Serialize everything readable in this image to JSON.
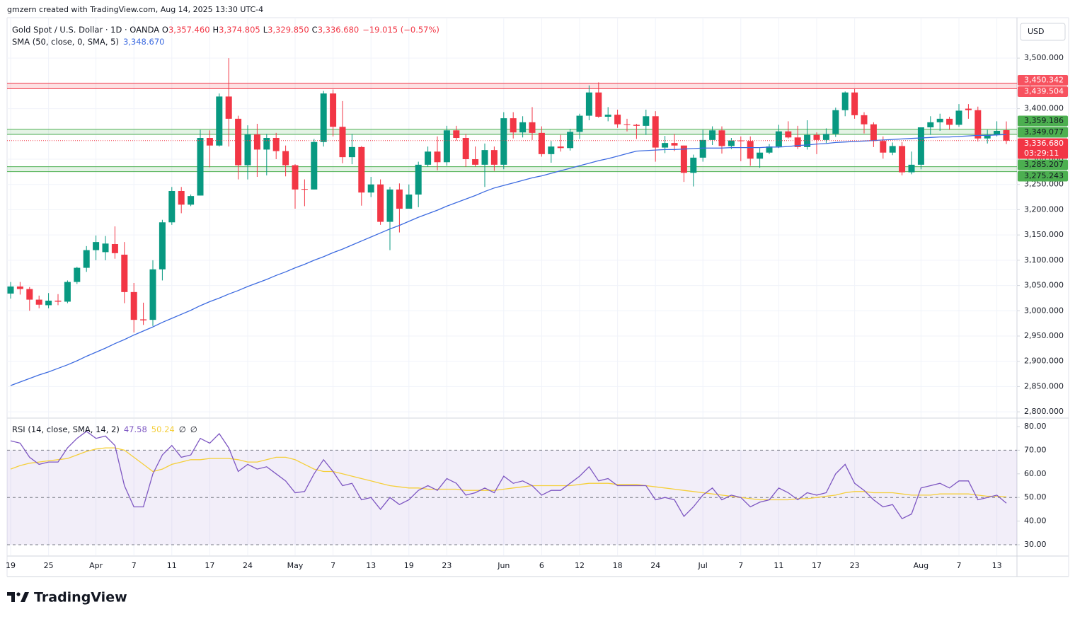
{
  "header": {
    "attribution": "gmzern created with TradingView.com, Aug 14, 2025 13:30 UTC-4"
  },
  "footer": {
    "logo": "TradingView"
  },
  "chart_data": [
    {
      "type": "candlestick",
      "title": "Gold Spot / U.S. Dollar · 1D · OANDA",
      "ohlc_legend": [
        {
          "key": "O",
          "value": "3,357.460"
        },
        {
          "key": "H",
          "value": "3,374.805"
        },
        {
          "key": "L",
          "value": "3,329.850"
        },
        {
          "key": "C",
          "value": "3,336.680"
        }
      ],
      "change": "−19.015 (−0.57%)",
      "currency": "USD",
      "categories": [
        "19",
        null,
        null,
        null,
        "25",
        null,
        null,
        null,
        null,
        "Apr",
        null,
        null,
        null,
        "7",
        null,
        null,
        null,
        "11",
        null,
        null,
        null,
        "17",
        null,
        null,
        null,
        "24",
        null,
        null,
        null,
        null,
        "May",
        null,
        null,
        null,
        "7",
        null,
        null,
        null,
        "13",
        null,
        null,
        null,
        "19",
        null,
        null,
        null,
        "23",
        null,
        null,
        null,
        null,
        null,
        "Jun",
        null,
        null,
        null,
        "6",
        null,
        null,
        null,
        "12",
        null,
        null,
        null,
        "18",
        null,
        null,
        null,
        "24",
        null,
        null,
        null,
        null,
        "Jul",
        null,
        null,
        null,
        "7",
        null,
        null,
        null,
        "11",
        null,
        null,
        null,
        "17",
        null,
        null,
        null,
        "23",
        null,
        null,
        null,
        null,
        null,
        null,
        "Aug",
        null,
        null,
        null,
        "7",
        null,
        null,
        null,
        "13",
        null
      ],
      "series": [
        {
          "up_color": "#089981",
          "down_color": "#f23645",
          "open": [
            3034,
            3048,
            3043,
            3022,
            3011,
            3020,
            3018,
            3057,
            3085,
            3120,
            3116,
            3132,
            3111,
            3037,
            2983,
            2982,
            3082,
            3175,
            3237,
            3210,
            3228,
            3342,
            3327,
            3424,
            3380,
            3288,
            3349,
            3319,
            3342,
            3316,
            3288,
            3241,
            3240,
            3334,
            3430,
            3364,
            3304,
            3324,
            3234,
            3250,
            3176,
            3240,
            3202,
            3230,
            3289,
            3315,
            3294,
            3357,
            3342,
            3300,
            3289,
            3318,
            3289,
            3381,
            3353,
            3373,
            3352,
            3310,
            3325,
            3322,
            3354,
            3386,
            3432,
            3384,
            3388,
            3369,
            3368,
            3366,
            3385,
            3323,
            3332,
            3327,
            3273,
            3303,
            3338,
            3357,
            3326,
            3337,
            3336,
            3301,
            3313,
            3325,
            3355,
            3343,
            3324,
            3348,
            3338,
            3350,
            3397,
            3432,
            3387,
            3369,
            3336,
            3313,
            3326,
            3274,
            3289,
            3363,
            3373,
            3380,
            3368,
            3400,
            3397,
            3341,
            3348,
            3357.46
          ],
          "high": [
            3057,
            3057,
            3047,
            3030,
            3035,
            3033,
            3060,
            3087,
            3128,
            3149,
            3148,
            3167,
            3136,
            3055,
            3016,
            3100,
            3180,
            3245,
            3245,
            3230,
            3358,
            3357,
            3430,
            3500,
            3386,
            3367,
            3370,
            3350,
            3352,
            3327,
            3290,
            3260,
            3340,
            3435,
            3438,
            3415,
            3350,
            3326,
            3265,
            3260,
            3245,
            3252,
            3250,
            3295,
            3325,
            3345,
            3366,
            3366,
            3350,
            3325,
            3331,
            3325,
            3393,
            3393,
            3385,
            3403,
            3365,
            3336,
            3348,
            3360,
            3390,
            3446,
            3452,
            3403,
            3398,
            3380,
            3370,
            3398,
            3395,
            3346,
            3350,
            3327,
            3309,
            3358,
            3365,
            3365,
            3342,
            3345,
            3345,
            3322,
            3330,
            3368,
            3375,
            3366,
            3377,
            3353,
            3361,
            3402,
            3434,
            3439,
            3393,
            3373,
            3345,
            3333,
            3334,
            3315,
            3363,
            3385,
            3390,
            3384,
            3409,
            3409,
            3404,
            3358,
            3375,
            3374.805
          ],
          "low": [
            3024,
            3032,
            3000,
            3005,
            3005,
            3011,
            3015,
            3053,
            3077,
            3100,
            3100,
            3103,
            3015,
            2957,
            2972,
            2970,
            3060,
            3170,
            3193,
            3207,
            3228,
            3284,
            3325,
            3325,
            3260,
            3260,
            3265,
            3268,
            3300,
            3266,
            3202,
            3207,
            3240,
            3325,
            3345,
            3292,
            3290,
            3208,
            3225,
            3170,
            3120,
            3155,
            3205,
            3205,
            3285,
            3278,
            3287,
            3337,
            3285,
            3285,
            3245,
            3277,
            3280,
            3341,
            3343,
            3338,
            3305,
            3293,
            3315,
            3317,
            3340,
            3377,
            3382,
            3375,
            3362,
            3355,
            3340,
            3348,
            3295,
            3312,
            3316,
            3255,
            3246,
            3295,
            3328,
            3311,
            3320,
            3296,
            3287,
            3283,
            3310,
            3322,
            3341,
            3320,
            3319,
            3310,
            3332,
            3344,
            3385,
            3380,
            3351,
            3324,
            3301,
            3308,
            3268,
            3270,
            3280,
            3348,
            3356,
            3358,
            3364,
            3380,
            3335,
            3331,
            3345,
            3329.85
          ],
          "close": [
            3048,
            3043,
            3022,
            3012,
            3020,
            3018,
            3057,
            3085,
            3120,
            3136,
            3133,
            3114,
            3037,
            2982,
            2981,
            3082,
            3175,
            3237,
            3210,
            3227,
            3342,
            3327,
            3424,
            3380,
            3288,
            3349,
            3319,
            3342,
            3316,
            3288,
            3240,
            3240,
            3334,
            3430,
            3364,
            3304,
            3324,
            3234,
            3250,
            3176,
            3240,
            3202,
            3230,
            3289,
            3315,
            3294,
            3357,
            3342,
            3300,
            3289,
            3318,
            3289,
            3381,
            3353,
            3373,
            3352,
            3310,
            3325,
            3322,
            3354,
            3386,
            3432,
            3384,
            3388,
            3369,
            3368,
            3366,
            3385,
            3323,
            3332,
            3327,
            3273,
            3303,
            3338,
            3357,
            3326,
            3337,
            3336,
            3301,
            3313,
            3325,
            3355,
            3343,
            3324,
            3348,
            3338,
            3350,
            3397,
            3432,
            3387,
            3369,
            3336,
            3313,
            3326,
            3274,
            3289,
            3363,
            3373,
            3380,
            3368,
            3396,
            3397,
            3341,
            3348,
            3356,
            3336.68
          ]
        },
        {
          "name": "SMA (50, close, 0, SMA, 5)",
          "legend_value": "3,348.670",
          "color": "#3d6be0",
          "values": [
            2852,
            2859,
            2866,
            2873,
            2879,
            2886,
            2893,
            2901,
            2910,
            2918,
            2926,
            2935,
            2943,
            2952,
            2960,
            2968,
            2977,
            2985,
            2993,
            3001,
            3010,
            3018,
            3025,
            3033,
            3040,
            3048,
            3055,
            3062,
            3070,
            3077,
            3085,
            3092,
            3100,
            3107,
            3115,
            3122,
            3130,
            3138,
            3146,
            3154,
            3162,
            3169,
            3177,
            3185,
            3192,
            3199,
            3207,
            3214,
            3221,
            3228,
            3236,
            3243,
            3248,
            3253,
            3258,
            3263,
            3267,
            3272,
            3277,
            3282,
            3287,
            3292,
            3297,
            3301,
            3306,
            3311,
            3316,
            3317,
            3318,
            3319,
            3319,
            3320,
            3321,
            3322,
            3322,
            3322,
            3323,
            3323,
            3323,
            3323,
            3324,
            3324,
            3325,
            3327,
            3328,
            3330,
            3331,
            3333,
            3334,
            3335,
            3336,
            3337,
            3338,
            3339,
            3340,
            3341,
            3342,
            3343,
            3344,
            3344,
            3345,
            3346,
            3347,
            3347,
            3348,
            3348.67
          ]
        }
      ],
      "zones": [
        {
          "top": {
            "value": 3450.342,
            "label": "3,450.342"
          },
          "bottom": {
            "value": 3439.504,
            "label": "3,439.504"
          },
          "color": "#f23645"
        },
        {
          "top": {
            "value": 3359.186,
            "label": "3,359.186"
          },
          "bottom": {
            "value": 3349.077,
            "label": "3,349.077"
          },
          "color": "#4caf50"
        },
        {
          "top": {
            "value": 3285.207,
            "label": "3,285.207"
          },
          "bottom": {
            "value": 3275.243,
            "label": "3,275.243"
          },
          "color": "#4caf50"
        }
      ],
      "last_price": {
        "value": 3336.68,
        "label": "3,336.680",
        "countdown": "03:29:11",
        "color": "#f23645"
      },
      "ylim": [
        2789,
        3580
      ],
      "yticks": [
        {
          "value": 2800,
          "label": "2,800.000"
        },
        {
          "value": 2850,
          "label": "2,850.000"
        },
        {
          "value": 2900,
          "label": "2,900.000"
        },
        {
          "value": 2950,
          "label": "2,950.000"
        },
        {
          "value": 3000,
          "label": "3,000.000"
        },
        {
          "value": 3050,
          "label": "3,050.000"
        },
        {
          "value": 3100,
          "label": "3,100.000"
        },
        {
          "value": 3150,
          "label": "3,150.000"
        },
        {
          "value": 3200,
          "label": "3,200.000"
        },
        {
          "value": 3250,
          "label": "3,250.000"
        },
        {
          "value": 3300,
          "label": "3,300.000"
        },
        {
          "value": 3350,
          "label": "3,350.000"
        },
        {
          "value": 3400,
          "label": "3,400.000"
        },
        {
          "value": 3450,
          "label": "3,450.000"
        },
        {
          "value": 3500,
          "label": "3,500.000"
        }
      ],
      "grid": true
    },
    {
      "type": "line",
      "title": "RSI (14, close, SMA, 14, 2)",
      "legend_extras": [
        "∅",
        "∅"
      ],
      "series": [
        {
          "legend_value": "47.58",
          "color": "#7e57c2",
          "values": [
            74,
            73,
            67,
            64,
            65,
            65,
            71,
            75,
            78,
            75,
            76,
            72,
            55,
            46,
            46,
            60,
            68,
            72,
            67,
            68,
            75,
            73,
            77,
            71,
            61,
            64,
            62,
            63,
            60,
            57,
            52,
            52.5,
            60,
            66,
            61,
            55,
            56,
            49,
            50,
            45,
            50,
            47,
            49,
            53,
            55,
            53,
            58,
            56,
            51,
            52,
            54,
            52,
            59,
            56,
            57,
            55,
            51,
            53,
            53,
            56,
            59,
            63,
            57,
            58,
            55,
            55,
            55,
            55,
            49,
            50,
            49,
            42,
            46,
            51,
            54,
            49,
            51,
            50,
            46,
            48,
            49,
            54,
            52,
            49,
            52,
            51,
            52,
            60,
            64,
            56,
            53,
            49,
            46,
            47,
            41,
            43,
            54,
            55,
            56,
            54,
            57,
            57,
            49,
            50,
            51,
            47.58
          ]
        },
        {
          "legend_value": "50.24",
          "color": "#f5cf3b",
          "values": [
            62,
            63.5,
            64.5,
            65,
            65.5,
            66,
            66.5,
            68,
            69.5,
            70.5,
            71,
            71,
            70,
            67,
            64,
            61,
            62,
            64,
            65,
            66,
            66,
            66.5,
            66.5,
            66.5,
            66,
            65,
            65,
            66,
            67,
            67,
            66,
            64,
            62,
            61,
            61,
            60,
            59,
            58,
            57,
            56,
            55,
            54.5,
            54,
            54,
            53.5,
            53.5,
            53.5,
            53.5,
            53,
            53,
            53,
            53,
            53.5,
            54,
            54.5,
            55,
            55,
            55,
            55,
            55,
            55.5,
            56,
            56,
            56,
            55.5,
            55.5,
            55.5,
            55,
            54.5,
            54,
            53.5,
            53,
            52.5,
            52,
            51.5,
            51,
            50.5,
            50,
            49.5,
            49,
            49,
            49,
            49,
            49.5,
            49.5,
            50,
            50.5,
            51,
            52,
            52.5,
            52.5,
            52,
            52,
            52,
            51.5,
            51,
            51,
            51,
            51.5,
            51.5,
            51.5,
            51.5,
            51,
            50.5,
            50.5,
            50.24
          ]
        }
      ],
      "levels": [
        70,
        50,
        30
      ],
      "band": [
        30,
        70
      ],
      "band_color": "#7e57c2",
      "ylim": [
        25.5,
        83.3
      ],
      "yticks": [
        {
          "value": 30,
          "label": "30.00"
        },
        {
          "value": 40,
          "label": "40.00"
        },
        {
          "value": 50,
          "label": "50.00"
        },
        {
          "value": 60,
          "label": "60.00"
        },
        {
          "value": 70,
          "label": "70.00"
        },
        {
          "value": 80,
          "label": "80.00"
        }
      ]
    }
  ]
}
